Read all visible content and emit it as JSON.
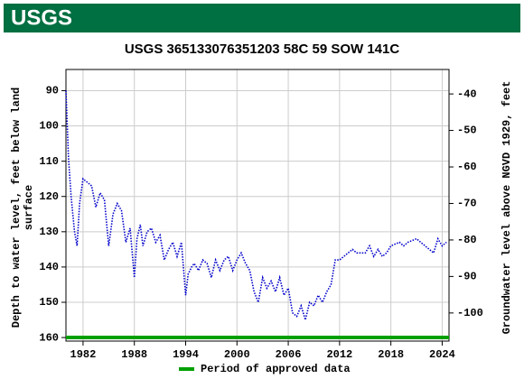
{
  "header": {
    "logo": "USGS"
  },
  "chart_data": {
    "type": "line",
    "title": "USGS 365133076351203 58C 59 SOW 141C",
    "ylabel": [
      "Depth to water level, feet below land",
      "surface"
    ],
    "y2label": "Groundwater level above NGVD 1929, feet",
    "xlim": [
      1980,
      2024.8
    ],
    "xticks": [
      1982,
      1988,
      1994,
      2000,
      2006,
      2012,
      2018,
      2024
    ],
    "ylim": [
      161,
      84
    ],
    "yticks": [
      90,
      100,
      110,
      120,
      130,
      140,
      150,
      160
    ],
    "y2lim": [
      -107.7,
      -33.3
    ],
    "y2ticks": [
      -40,
      -50,
      -60,
      -70,
      -80,
      -90,
      -100
    ],
    "grid": true,
    "series": [
      {
        "name": "Depth to water level",
        "color": "#0000cc",
        "x": [
          1980.0,
          1980.3,
          1980.6,
          1981.0,
          1981.3,
          1981.6,
          1982,
          1982.5,
          1983,
          1983.5,
          1984,
          1984.5,
          1985,
          1985.5,
          1986,
          1986.5,
          1987,
          1987.5,
          1988,
          1988.3,
          1988.7,
          1989,
          1989.5,
          1990,
          1990.5,
          1991,
          1991.5,
          1992,
          1992.5,
          1993,
          1993.5,
          1994,
          1994.3,
          1994.7,
          1995,
          1995.5,
          1996,
          1996.5,
          1997,
          1997.5,
          1998,
          1998.5,
          1999,
          1999.5,
          2000,
          2000.5,
          2001,
          2001.5,
          2002,
          2002.5,
          2003,
          2003.5,
          2004,
          2004.5,
          2005,
          2005.5,
          2006,
          2006.5,
          2007,
          2007.5,
          2008,
          2008.5,
          2009,
          2009.5,
          2010,
          2010.5,
          2011,
          2011.5,
          2012,
          2012.5,
          2013,
          2013.5,
          2014,
          2015,
          2015.5,
          2016,
          2016.5,
          2017,
          2017.5,
          2018,
          2019,
          2019.5,
          2020,
          2021,
          2022,
          2023,
          2023.5,
          2024,
          2024.5
        ],
        "values": [
          90,
          109,
          120,
          130,
          134,
          122,
          115,
          116,
          117,
          123,
          119,
          121,
          134,
          125,
          122,
          124,
          133,
          129,
          143,
          132,
          128,
          134,
          130,
          129,
          133,
          131,
          138,
          135,
          133,
          137,
          133,
          148,
          142,
          140,
          139,
          141,
          138,
          139,
          143,
          138,
          141,
          138,
          137,
          141,
          138,
          136,
          139,
          141,
          147,
          150,
          143,
          146,
          144,
          147,
          143,
          148,
          146,
          153,
          154,
          151,
          155,
          150,
          151,
          148,
          150,
          147,
          145,
          138,
          138,
          137,
          136,
          135,
          136,
          136,
          134,
          137,
          135,
          137,
          136,
          134,
          133,
          134,
          133,
          132,
          134,
          136,
          132,
          134,
          133
        ]
      }
    ],
    "approved_period": {
      "name": "Period of approved data",
      "color": "#00a000",
      "x": [
        1980,
        2024.8
      ]
    }
  }
}
